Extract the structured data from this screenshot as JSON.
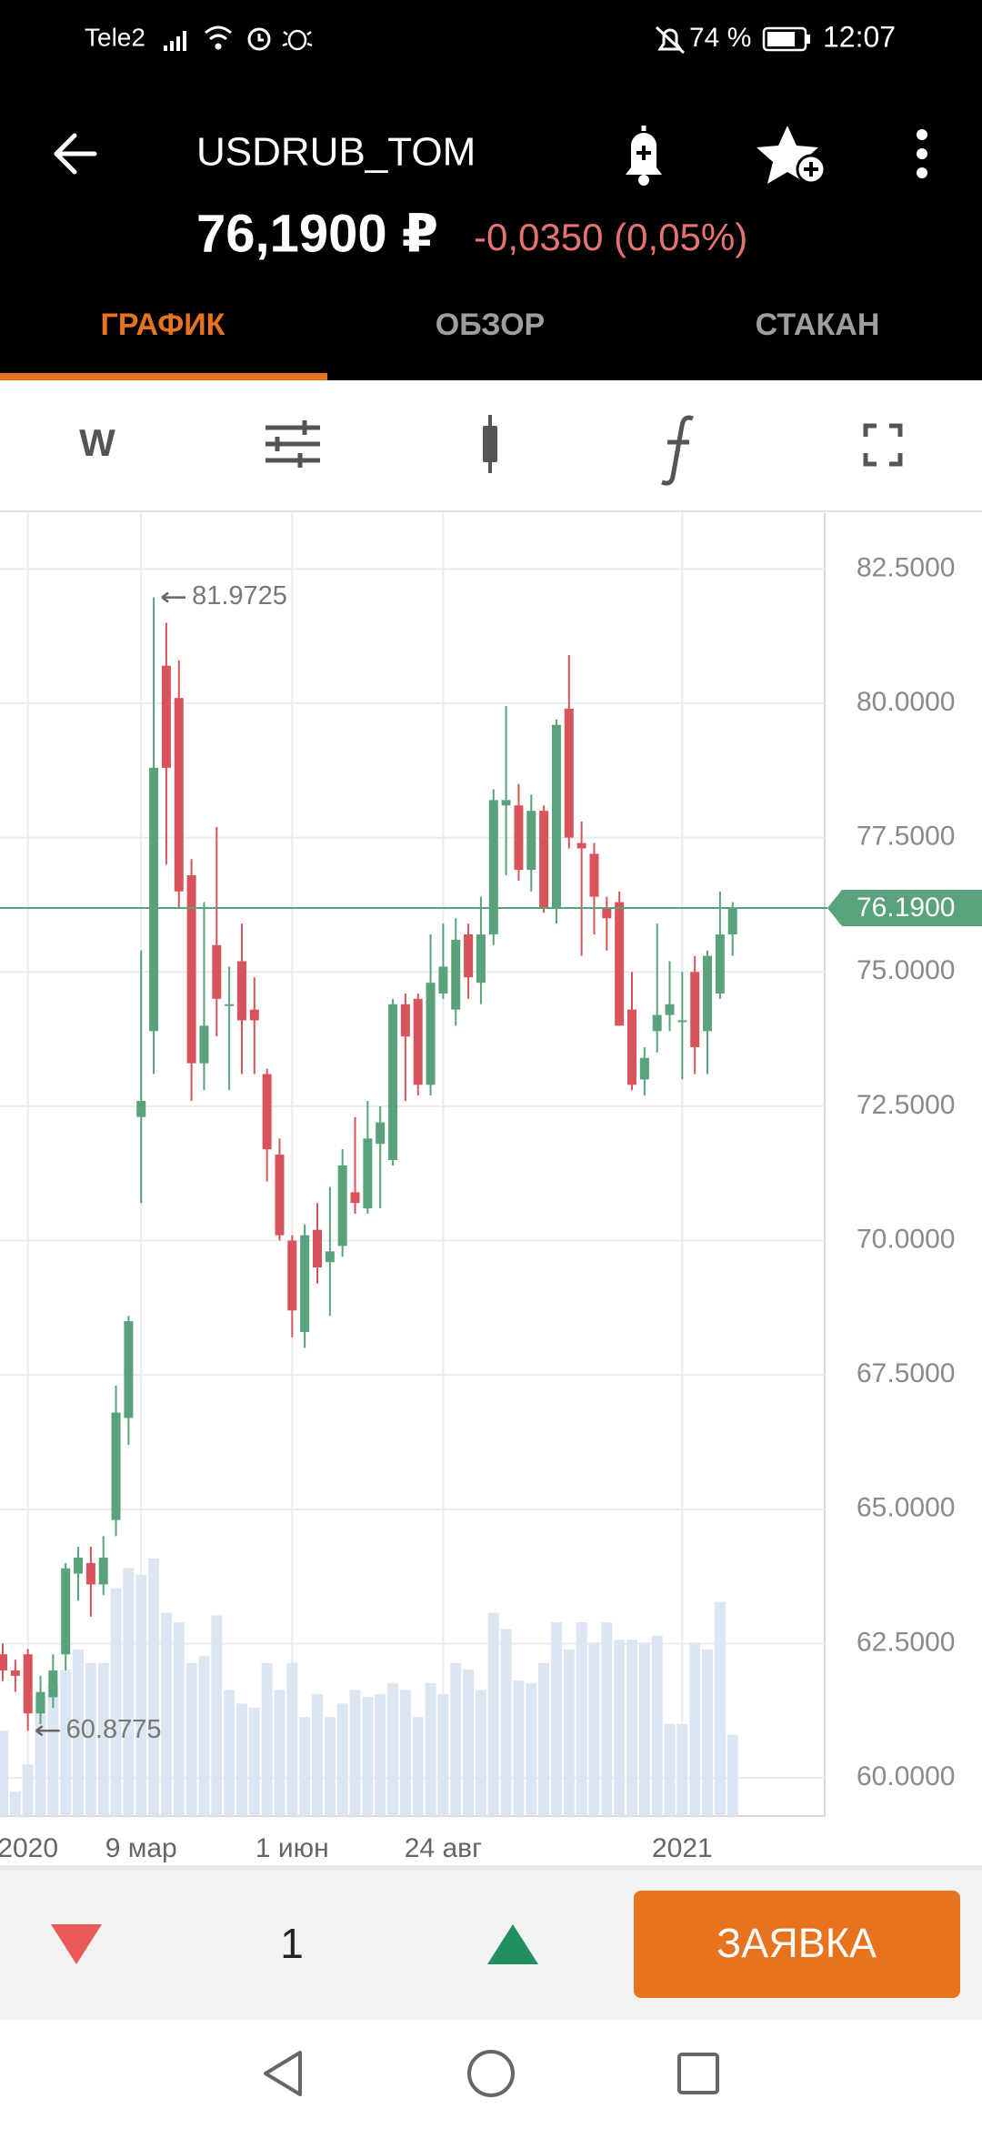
{
  "status_bar": {
    "carrier": "Tele2",
    "battery": "74 %",
    "time": "12:07"
  },
  "header": {
    "symbol": "USDRUB_TOM",
    "price": "76,1900 ₽",
    "change": "-0,0350 (0,05%)"
  },
  "tabs": [
    "ГРАФИК",
    "ОБЗОР",
    "СТАКАН"
  ],
  "toolbar": {
    "interval": "W"
  },
  "chart_data": {
    "type": "candlestick",
    "categories": [
      null,
      null,
      "2020",
      null,
      null,
      null,
      null,
      null,
      null,
      null,
      null,
      "9 мар",
      null,
      null,
      null,
      null,
      null,
      null,
      null,
      null,
      null,
      null,
      null,
      "1 июн",
      null,
      null,
      null,
      null,
      null,
      null,
      null,
      null,
      null,
      null,
      null,
      "24 авг",
      null,
      null,
      null,
      null,
      null,
      null,
      null,
      null,
      null,
      null,
      null,
      null,
      null,
      null,
      null,
      null,
      null,
      null,
      "2021",
      null,
      null,
      null,
      null
    ],
    "open": [
      62.3,
      62.0,
      62.3,
      61.2,
      61.5,
      62.3,
      63.8,
      64.0,
      63.6,
      64.8,
      66.7,
      72.3,
      73.9,
      80.7,
      80.1,
      76.8,
      73.3,
      75.5,
      74.4,
      75.2,
      74.3,
      73.1,
      71.6,
      70.0,
      68.3,
      70.2,
      69.6,
      69.9,
      70.9,
      70.6,
      71.8,
      71.5,
      74.4,
      74.5,
      72.9,
      74.6,
      74.3,
      75.7,
      74.8,
      75.7,
      78.1,
      78.1,
      76.9,
      78.0,
      76.2,
      79.9,
      77.4,
      77.2,
      76.2,
      76.3,
      74.3,
      73.0,
      73.9,
      74.2,
      74.1,
      75.0,
      73.9,
      74.6,
      75.7
    ],
    "high": [
      62.5,
      62.2,
      62.4,
      61.9,
      62.3,
      64.0,
      64.3,
      64.3,
      64.5,
      67.3,
      68.6,
      75.4,
      81.9725,
      81.5,
      80.8,
      77.1,
      76.3,
      77.7,
      75.1,
      75.9,
      74.9,
      73.2,
      71.9,
      70.1,
      70.3,
      70.7,
      71.0,
      71.7,
      72.3,
      72.6,
      72.5,
      74.5,
      74.6,
      74.6,
      75.7,
      75.9,
      76.0,
      75.9,
      76.4,
      78.4,
      79.95,
      78.5,
      78.3,
      78.1,
      79.7,
      80.9,
      77.8,
      77.4,
      76.4,
      76.5,
      75.0,
      73.6,
      75.9,
      75.2,
      75.0,
      75.3,
      75.4,
      76.5,
      76.3
    ],
    "low": [
      61.8,
      61.6,
      60.8775,
      61.0,
      61.3,
      62.0,
      63.3,
      63.0,
      63.4,
      64.5,
      66.2,
      70.7,
      73.1,
      77.0,
      76.2,
      72.6,
      72.8,
      73.8,
      72.8,
      73.1,
      73.1,
      71.1,
      70.0,
      68.2,
      68.0,
      69.2,
      68.6,
      69.7,
      70.5,
      70.5,
      70.6,
      71.4,
      72.6,
      72.7,
      72.7,
      74.5,
      74.0,
      74.5,
      74.4,
      75.5,
      76.8,
      76.7,
      76.5,
      76.1,
      75.9,
      77.3,
      75.3,
      75.7,
      75.4,
      74.0,
      72.8,
      72.7,
      73.5,
      73.9,
      73.0,
      73.1,
      73.1,
      74.5,
      75.3
    ],
    "close": [
      62.0,
      61.9,
      61.2,
      61.6,
      62.0,
      63.9,
      64.1,
      63.6,
      64.1,
      66.8,
      68.5,
      72.6,
      78.8,
      78.8,
      76.5,
      73.3,
      74.0,
      74.5,
      74.4,
      74.1,
      74.1,
      71.7,
      70.1,
      68.7,
      70.1,
      69.5,
      69.8,
      71.4,
      70.7,
      71.9,
      72.2,
      74.4,
      73.8,
      72.9,
      74.8,
      75.1,
      75.6,
      74.9,
      75.7,
      78.2,
      78.2,
      76.9,
      78.0,
      76.2,
      79.6,
      77.5,
      77.3,
      76.4,
      76.0,
      74.0,
      72.9,
      73.4,
      74.2,
      74.4,
      74.1,
      73.6,
      75.3,
      75.7,
      76.19
    ],
    "volumes": [
      63,
      18,
      38,
      88,
      98,
      108,
      123,
      113,
      113,
      168,
      183,
      178,
      190,
      150,
      143,
      113,
      118,
      148,
      93,
      83,
      80,
      113,
      93,
      113,
      73,
      90,
      73,
      83,
      93,
      88,
      90,
      98,
      93,
      73,
      98,
      90,
      113,
      108,
      93,
      150,
      138,
      100,
      98,
      113,
      143,
      123,
      143,
      128,
      143,
      130,
      130,
      128,
      133,
      68,
      68,
      128,
      123,
      158,
      60
    ],
    "up_color": "#5aa27c",
    "down_color": "#d9545a",
    "volume_color": "#dbe6f2",
    "ylim": [
      59.29,
      83.54
    ],
    "yticks": [
      {
        "value": 60,
        "label": "60.0000"
      },
      {
        "value": 62.5,
        "label": "62.5000"
      },
      {
        "value": 65,
        "label": "65.0000"
      },
      {
        "value": 67.5,
        "label": "67.5000"
      },
      {
        "value": 70,
        "label": "70.0000"
      },
      {
        "value": 72.5,
        "label": "72.5000"
      },
      {
        "value": 75,
        "label": "75.0000"
      },
      {
        "value": 77.5,
        "label": "77.5000"
      },
      {
        "value": 80,
        "label": "80.0000"
      },
      {
        "value": 82.5,
        "label": "82.5000"
      }
    ],
    "grid": true,
    "last_price": {
      "value": 76.19,
      "label": "76.1900"
    },
    "annotations": [
      {
        "value": 81.9725,
        "label": "81.9725"
      },
      {
        "value": 60.8775,
        "label": "60.8775"
      }
    ]
  },
  "order_bar": {
    "quantity": 1,
    "button": "ЗАЯВКА"
  }
}
